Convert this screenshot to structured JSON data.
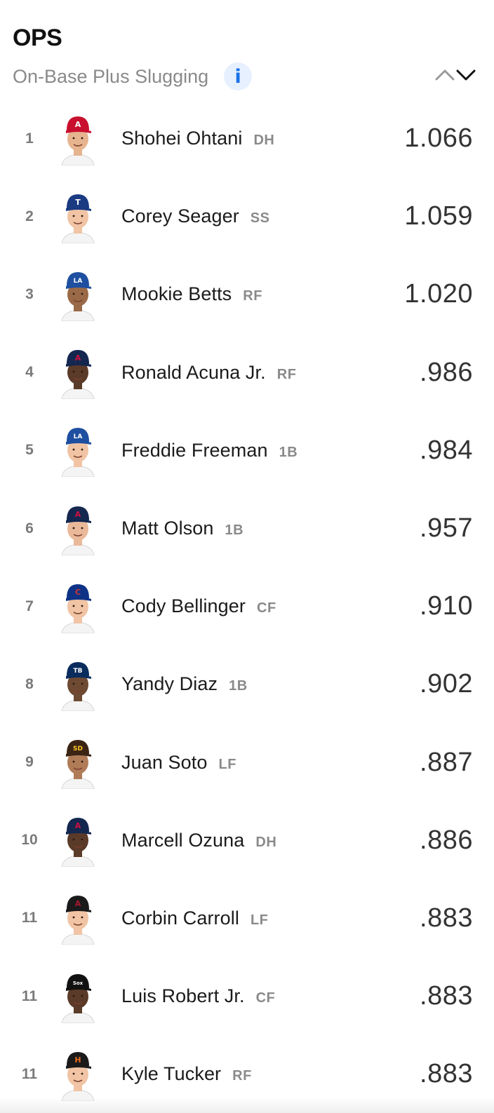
{
  "header": {
    "title": "OPS",
    "subtitle": "On-Base Plus Slugging",
    "info_label": "i"
  },
  "players": [
    {
      "rank": "1",
      "name": "Shohei Ohtani",
      "pos": "DH",
      "value": "1.066",
      "cap_color": "#c8102e",
      "logo": "A",
      "logo_color": "#ffffff",
      "skin": "#e6b48f"
    },
    {
      "rank": "2",
      "name": "Corey Seager",
      "pos": "SS",
      "value": "1.059",
      "cap_color": "#1a3a82",
      "logo": "T",
      "logo_color": "#ffffff",
      "skin": "#f0c4a4"
    },
    {
      "rank": "3",
      "name": "Mookie Betts",
      "pos": "RF",
      "value": "1.020",
      "cap_color": "#1e4fa0",
      "logo": "LA",
      "logo_color": "#ffffff",
      "skin": "#9a6a48"
    },
    {
      "rank": "4",
      "name": "Ronald Acuna Jr.",
      "pos": "RF",
      "value": ".986",
      "cap_color": "#13274f",
      "logo": "A",
      "logo_color": "#ce1141",
      "skin": "#5a3a28"
    },
    {
      "rank": "5",
      "name": "Freddie Freeman",
      "pos": "1B",
      "value": ".984",
      "cap_color": "#1e4fa0",
      "logo": "LA",
      "logo_color": "#ffffff",
      "skin": "#f0c4a4"
    },
    {
      "rank": "6",
      "name": "Matt Olson",
      "pos": "1B",
      "value": ".957",
      "cap_color": "#13274f",
      "logo": "A",
      "logo_color": "#ce1141",
      "skin": "#eab99a"
    },
    {
      "rank": "7",
      "name": "Cody Bellinger",
      "pos": "CF",
      "value": ".910",
      "cap_color": "#0e3386",
      "logo": "C",
      "logo_color": "#cc3433",
      "skin": "#f0c4a4"
    },
    {
      "rank": "8",
      "name": "Yandy Diaz",
      "pos": "1B",
      "value": ".902",
      "cap_color": "#092c5c",
      "logo": "TB",
      "logo_color": "#ffffff",
      "skin": "#6e4a32"
    },
    {
      "rank": "9",
      "name": "Juan Soto",
      "pos": "LF",
      "value": ".887",
      "cap_color": "#3b2414",
      "logo": "SD",
      "logo_color": "#ffc425",
      "skin": "#b07c58"
    },
    {
      "rank": "10",
      "name": "Marcell Ozuna",
      "pos": "DH",
      "value": ".886",
      "cap_color": "#13274f",
      "logo": "A",
      "logo_color": "#ce1141",
      "skin": "#5a3a28"
    },
    {
      "rank": "11",
      "name": "Corbin Carroll",
      "pos": "LF",
      "value": ".883",
      "cap_color": "#1a1a1a",
      "logo": "A",
      "logo_color": "#a71930",
      "skin": "#f0c4a4"
    },
    {
      "rank": "11",
      "name": "Luis Robert Jr.",
      "pos": "CF",
      "value": ".883",
      "cap_color": "#111111",
      "logo": "Sox",
      "logo_color": "#ffffff",
      "skin": "#5a3a28"
    },
    {
      "rank": "11",
      "name": "Kyle Tucker",
      "pos": "RF",
      "value": ".883",
      "cap_color": "#1a1a1a",
      "logo": "H",
      "logo_color": "#eb6e1f",
      "skin": "#f0c4a4"
    }
  ],
  "colors": {
    "accent": "#1a73e8",
    "info_bg": "#e6f0ff",
    "muted_text": "#8a8a8a"
  }
}
